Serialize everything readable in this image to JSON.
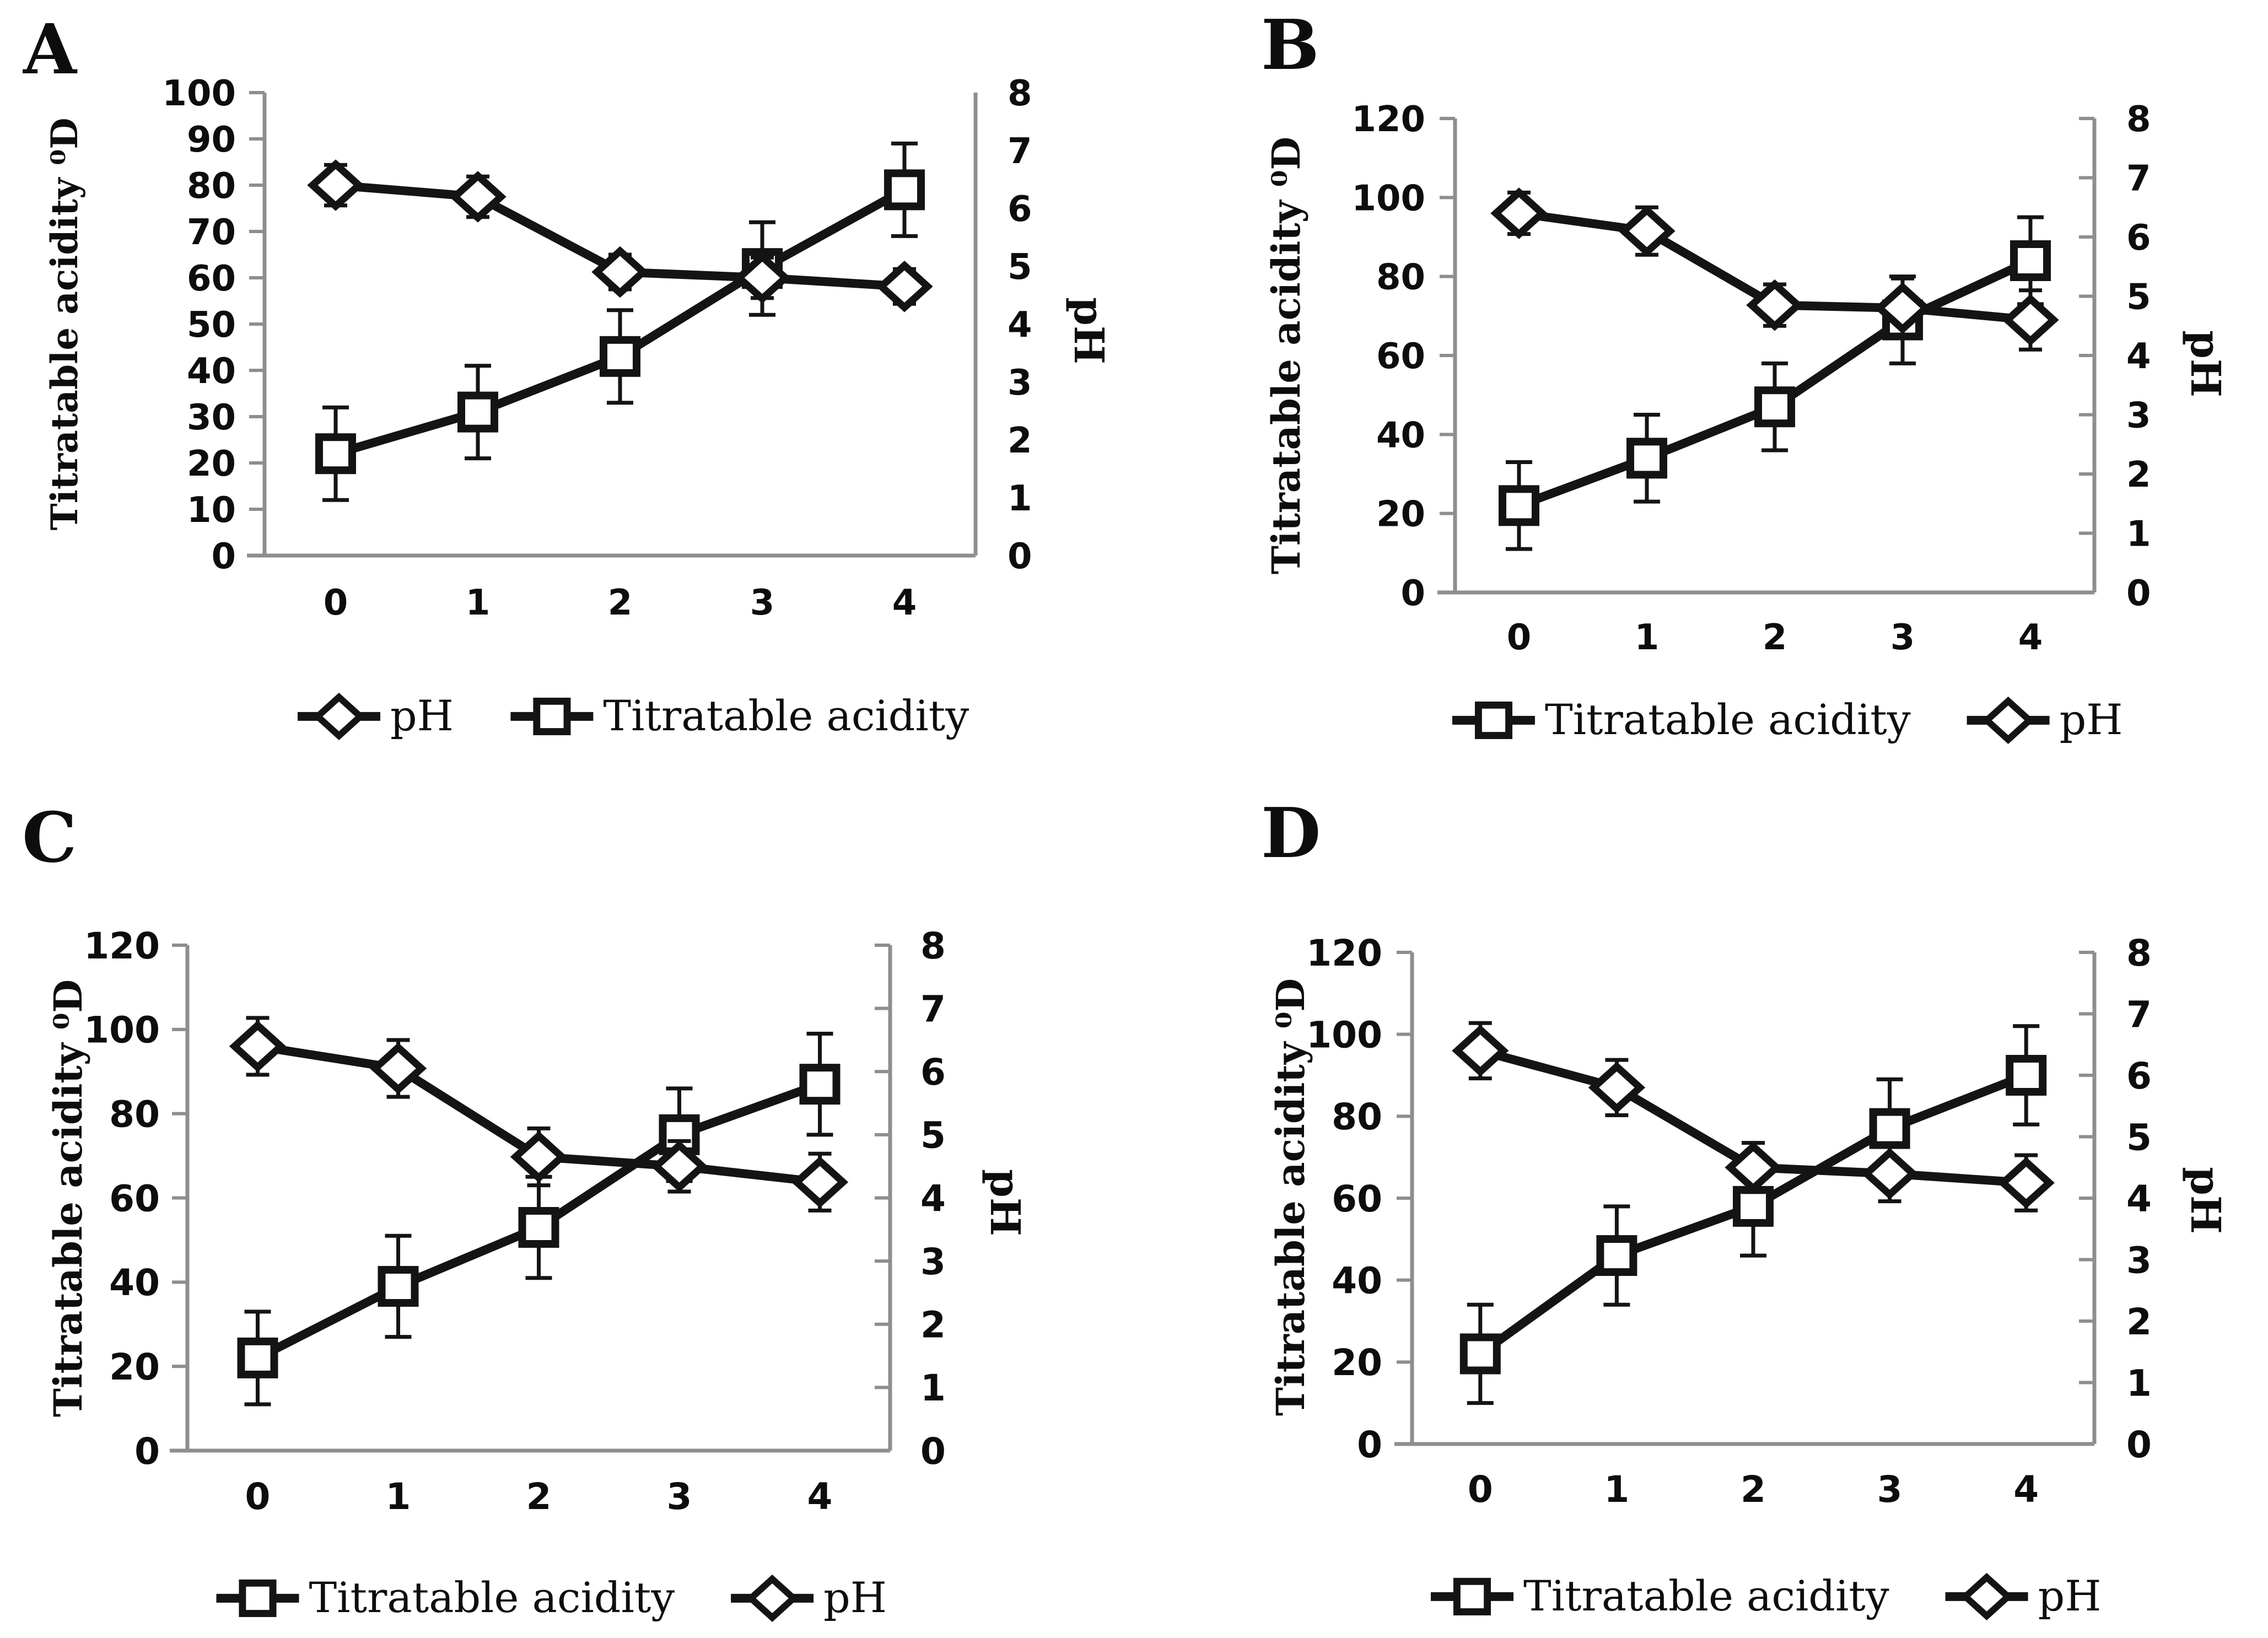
{
  "chart_data": [
    {
      "panel_label": "A",
      "type": "line",
      "x_categories": [
        "0",
        "1",
        "2",
        "3",
        "4"
      ],
      "y_left": {
        "title": "Titratable acidity ⁰D",
        "min": 0,
        "max": 100,
        "step": 10,
        "tick_labels": [
          "0",
          "10",
          "20",
          "30",
          "40",
          "50",
          "60",
          "70",
          "80",
          "90",
          "100"
        ]
      },
      "y_right": {
        "title": "pH",
        "min": 0,
        "max": 8,
        "step": 1,
        "tick_labels": [
          "0",
          "1",
          "2",
          "3",
          "4",
          "5",
          "6",
          "7",
          "8"
        ]
      },
      "series": [
        {
          "name": "Titratable acidity",
          "axis": "left",
          "marker": "square",
          "values": [
            22,
            31,
            43,
            62,
            79
          ],
          "errors": [
            10,
            10,
            10,
            10,
            10
          ]
        },
        {
          "name": "pH",
          "axis": "right",
          "marker": "diamond",
          "values": [
            6.4,
            6.2,
            4.9,
            4.8,
            4.65
          ],
          "errors": [
            0.35,
            0.35,
            0.3,
            0.35,
            0.3
          ]
        }
      ],
      "legend": {
        "position": "bottom",
        "order": [
          "pH",
          "Titratable acidity"
        ]
      },
      "grid": false,
      "ink_color": "#141414",
      "axis_color": "#8e8e8e"
    },
    {
      "panel_label": "B",
      "type": "line",
      "x_categories": [
        "0",
        "1",
        "2",
        "3",
        "4"
      ],
      "y_left": {
        "title": "Titratable acidity ⁰D",
        "min": 0,
        "max": 120,
        "step": 20,
        "tick_labels": [
          "0",
          "20",
          "40",
          "60",
          "80",
          "100",
          "120"
        ]
      },
      "y_right": {
        "title": "pH",
        "min": 0,
        "max": 8,
        "step": 1,
        "tick_labels": [
          "0",
          "1",
          "2",
          "3",
          "4",
          "5",
          "6",
          "7",
          "8"
        ]
      },
      "series": [
        {
          "name": "Titratable acidity",
          "axis": "left",
          "marker": "square",
          "values": [
            22,
            34,
            47,
            69,
            84
          ],
          "errors": [
            11,
            11,
            11,
            11,
            11
          ]
        },
        {
          "name": "pH",
          "axis": "right",
          "marker": "diamond",
          "values": [
            6.4,
            6.1,
            4.85,
            4.8,
            4.6
          ],
          "errors": [
            0.35,
            0.4,
            0.35,
            0.5,
            0.5
          ]
        }
      ],
      "legend": {
        "position": "bottom",
        "order": [
          "Titratable acidity",
          "pH"
        ]
      },
      "grid": false,
      "ink_color": "#141414",
      "axis_color": "#8e8e8e"
    },
    {
      "panel_label": "C",
      "type": "line",
      "x_categories": [
        "0",
        "1",
        "2",
        "3",
        "4"
      ],
      "y_left": {
        "title": "Titratable acidity ⁰D",
        "min": 0,
        "max": 120,
        "step": 20,
        "tick_labels": [
          "0",
          "20",
          "40",
          "60",
          "80",
          "100",
          "120"
        ]
      },
      "y_right": {
        "title": "pH",
        "min": 0,
        "max": 8,
        "step": 1,
        "tick_labels": [
          "0",
          "1",
          "2",
          "3",
          "4",
          "5",
          "6",
          "7",
          "8"
        ]
      },
      "series": [
        {
          "name": "Titratable acidity",
          "axis": "left",
          "marker": "square",
          "values": [
            22,
            39,
            53,
            75,
            87
          ],
          "errors": [
            11,
            12,
            12,
            11,
            12
          ]
        },
        {
          "name": "pH",
          "axis": "right",
          "marker": "diamond",
          "values": [
            6.4,
            6.05,
            4.65,
            4.5,
            4.25
          ],
          "errors": [
            0.45,
            0.45,
            0.45,
            0.4,
            0.45
          ]
        }
      ],
      "legend": {
        "position": "bottom",
        "order": [
          "Titratable acidity",
          "pH"
        ]
      },
      "grid": false,
      "ink_color": "#141414",
      "axis_color": "#8e8e8e"
    },
    {
      "panel_label": "D",
      "type": "line",
      "x_categories": [
        "0",
        "1",
        "2",
        "3",
        "4"
      ],
      "y_left": {
        "title": "Titratable acidity ⁰D",
        "min": 0,
        "max": 120,
        "step": 20,
        "tick_labels": [
          "0",
          "20",
          "40",
          "60",
          "80",
          "100",
          "120"
        ]
      },
      "y_right": {
        "title": "pH",
        "min": 0,
        "max": 8,
        "step": 1,
        "tick_labels": [
          "0",
          "1",
          "2",
          "3",
          "4",
          "5",
          "6",
          "7",
          "8"
        ]
      },
      "series": [
        {
          "name": "Titratable acidity",
          "axis": "left",
          "marker": "square",
          "values": [
            22,
            46,
            58,
            77,
            90
          ],
          "errors": [
            12,
            12,
            12,
            12,
            12
          ]
        },
        {
          "name": "pH",
          "axis": "right",
          "marker": "diamond",
          "values": [
            6.4,
            5.8,
            4.5,
            4.4,
            4.25
          ],
          "errors": [
            0.45,
            0.45,
            0.4,
            0.45,
            0.45
          ]
        }
      ],
      "legend": {
        "position": "bottom",
        "order": [
          "Titratable acidity",
          "pH"
        ]
      },
      "grid": false,
      "ink_color": "#141414",
      "axis_color": "#8e8e8e"
    }
  ]
}
